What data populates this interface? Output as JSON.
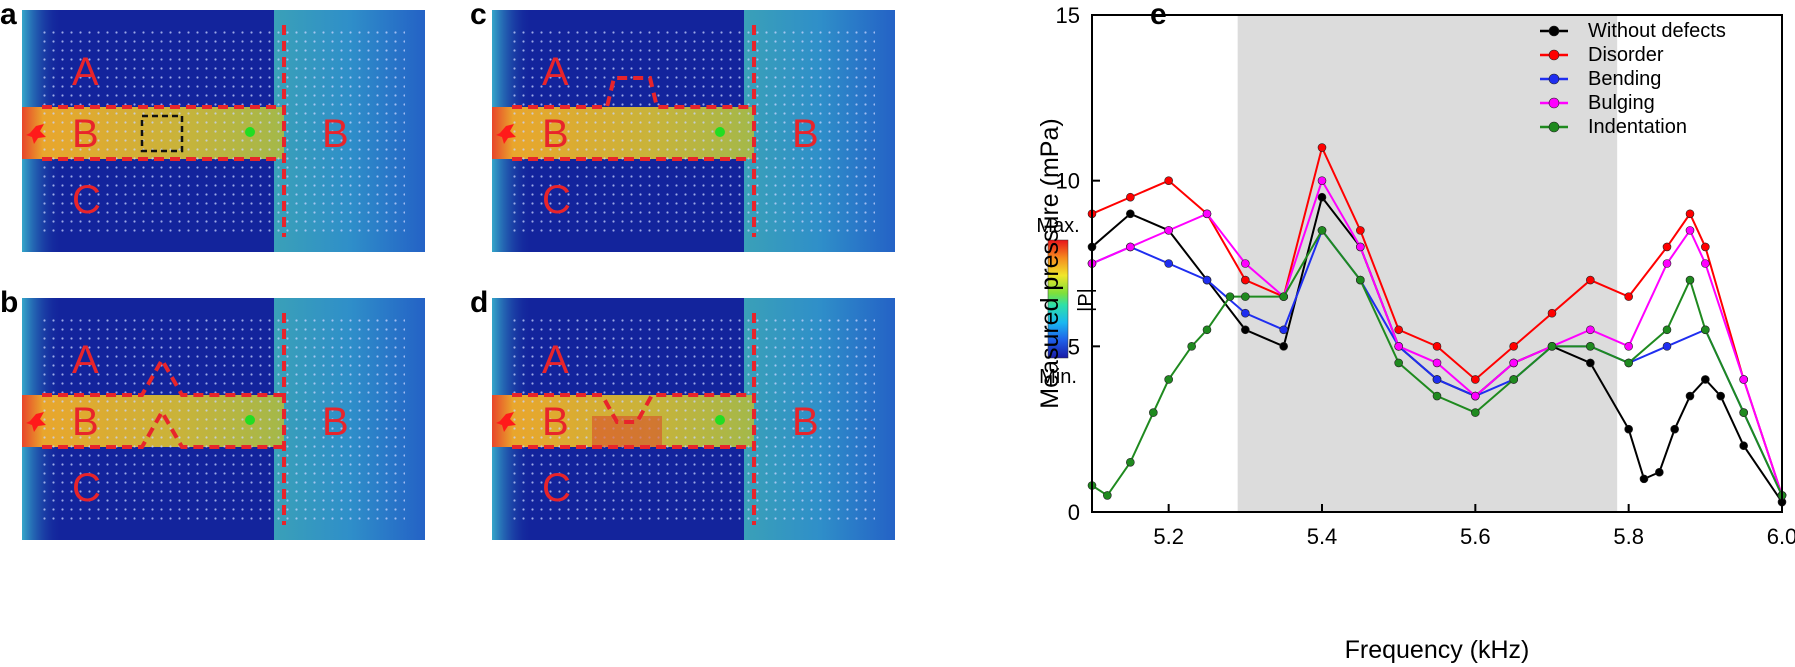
{
  "panels": [
    {
      "letter": "a",
      "defect": "cavity",
      "labels": {
        "top": "A",
        "mid": "B",
        "bot": "C",
        "right": "B"
      }
    },
    {
      "letter": "b",
      "defect": "bump-up",
      "labels": {
        "top": "A",
        "mid": "B",
        "bot": "C",
        "right": "B"
      }
    },
    {
      "letter": "c",
      "defect": "step-up",
      "labels": {
        "top": "A",
        "mid": "B",
        "bot": "C",
        "right": "B"
      }
    },
    {
      "letter": "d",
      "defect": "dip-down",
      "labels": {
        "top": "A",
        "mid": "B",
        "bot": "C",
        "right": "B"
      }
    }
  ],
  "colorbar": {
    "max_label": "Max.",
    "min_label": "Min.",
    "quantity": "|P|"
  },
  "colors": {
    "background": "#13249c",
    "channel": "#d9a52e",
    "boundary": "#e8242b",
    "source": "#ff1a1a",
    "probe": "#22dd22",
    "region_label": "#e8242b",
    "lattice": "#c8d4ff"
  },
  "chart_letter": "e",
  "chart_data": {
    "type": "line",
    "xlabel": "Frequency (kHz)",
    "ylabel": "Measured pressure (mPa)",
    "xlim": [
      5.1,
      6.0
    ],
    "ylim": [
      0,
      15
    ],
    "xticks": [
      5.2,
      5.4,
      5.6,
      5.8,
      6.0
    ],
    "xtick_labels": [
      "5.2",
      "5.4",
      "5.6",
      "5.8",
      "6.0"
    ],
    "yticks": [
      0,
      5,
      10,
      15
    ],
    "ytick_labels": [
      "0",
      "5",
      "10",
      "15"
    ],
    "shaded_band": [
      5.29,
      5.785
    ],
    "legend_position": "top-right",
    "grid": false,
    "series": [
      {
        "name": "Without defects",
        "color": "#000000",
        "x": [
          5.1,
          5.15,
          5.2,
          5.25,
          5.3,
          5.35,
          5.4,
          5.45,
          5.5,
          5.55,
          5.6,
          5.65,
          5.7,
          5.75,
          5.8,
          5.82,
          5.84,
          5.86,
          5.88,
          5.9,
          5.92,
          5.95,
          6.0
        ],
        "y": [
          8.0,
          9.0,
          8.5,
          7.0,
          5.5,
          5.0,
          9.5,
          8.0,
          5.0,
          4.0,
          3.5,
          4.5,
          5.0,
          4.5,
          2.5,
          1.0,
          1.2,
          2.5,
          3.5,
          4.0,
          3.5,
          2.0,
          0.3
        ]
      },
      {
        "name": "Disorder",
        "color": "#ff0000",
        "x": [
          5.1,
          5.15,
          5.2,
          5.25,
          5.3,
          5.35,
          5.4,
          5.45,
          5.5,
          5.55,
          5.6,
          5.65,
          5.7,
          5.75,
          5.8,
          5.85,
          5.88,
          5.9,
          5.95,
          6.0
        ],
        "y": [
          9.0,
          9.5,
          10.0,
          9.0,
          7.0,
          6.5,
          11.0,
          8.5,
          5.5,
          5.0,
          4.0,
          5.0,
          6.0,
          7.0,
          6.5,
          8.0,
          9.0,
          8.0,
          4.0,
          0.5
        ]
      },
      {
        "name": "Bending",
        "color": "#1f2ef0",
        "x": [
          5.1,
          5.15,
          5.2,
          5.25,
          5.3,
          5.35,
          5.4,
          5.45,
          5.5,
          5.55,
          5.6,
          5.65,
          5.7,
          5.75,
          5.8,
          5.85,
          5.9,
          5.95,
          6.0
        ],
        "y": [
          7.5,
          8.0,
          7.5,
          7.0,
          6.0,
          5.5,
          8.5,
          7.0,
          5.0,
          4.0,
          3.5,
          4.0,
          5.0,
          5.0,
          4.5,
          5.0,
          5.5,
          3.0,
          0.5
        ]
      },
      {
        "name": "Bulging",
        "color": "#ff00ff",
        "x": [
          5.1,
          5.15,
          5.2,
          5.25,
          5.3,
          5.35,
          5.4,
          5.45,
          5.5,
          5.55,
          5.6,
          5.65,
          5.7,
          5.75,
          5.8,
          5.85,
          5.88,
          5.9,
          5.95,
          6.0
        ],
        "y": [
          7.5,
          8.0,
          8.5,
          9.0,
          7.5,
          6.5,
          10.0,
          8.0,
          5.0,
          4.5,
          3.5,
          4.5,
          5.0,
          5.5,
          5.0,
          7.5,
          8.5,
          7.5,
          4.0,
          0.5
        ]
      },
      {
        "name": "Indentation",
        "color": "#1f8a1f",
        "x": [
          5.1,
          5.12,
          5.15,
          5.18,
          5.2,
          5.23,
          5.25,
          5.28,
          5.3,
          5.35,
          5.4,
          5.45,
          5.5,
          5.55,
          5.6,
          5.65,
          5.7,
          5.75,
          5.8,
          5.85,
          5.88,
          5.9,
          5.95,
          6.0
        ],
        "y": [
          0.8,
          0.5,
          1.5,
          3.0,
          4.0,
          5.0,
          5.5,
          6.5,
          6.5,
          6.5,
          8.5,
          7.0,
          4.5,
          3.5,
          3.0,
          4.0,
          5.0,
          5.0,
          4.5,
          5.5,
          7.0,
          5.5,
          3.0,
          0.5
        ]
      }
    ]
  }
}
